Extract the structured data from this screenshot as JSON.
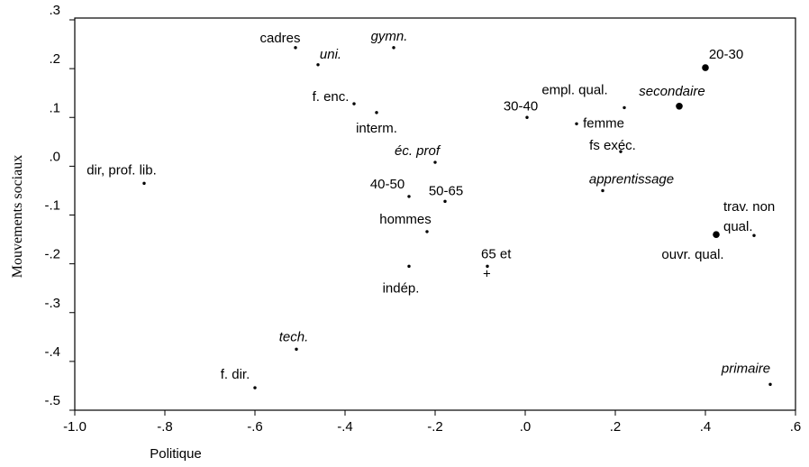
{
  "chart_data": {
    "type": "scatter",
    "xlabel": "Politique",
    "ylabel": "Mouvements sociaux",
    "xlim": [
      -1.0,
      0.6
    ],
    "ylim": [
      -0.5,
      0.3
    ],
    "xticks": [
      {
        "value": -1.0,
        "label": "-1.0"
      },
      {
        "value": -0.8,
        "label": "-.8"
      },
      {
        "value": -0.6,
        "label": "-.6"
      },
      {
        "value": -0.4,
        "label": "-.4"
      },
      {
        "value": -0.2,
        "label": "-.2"
      },
      {
        "value": 0.0,
        "label": ".0"
      },
      {
        "value": 0.2,
        "label": ".2"
      },
      {
        "value": 0.4,
        "label": ".4"
      },
      {
        "value": 0.6,
        "label": ".6"
      }
    ],
    "yticks": [
      {
        "value": 0.3,
        "label": ".3"
      },
      {
        "value": 0.2,
        "label": ".2"
      },
      {
        "value": 0.1,
        "label": ".1"
      },
      {
        "value": 0.0,
        "label": ".0"
      },
      {
        "value": -0.1,
        "label": "-.1"
      },
      {
        "value": -0.2,
        "label": "-.2"
      },
      {
        "value": -0.3,
        "label": "-.3"
      },
      {
        "value": -0.4,
        "label": "-.4"
      },
      {
        "value": -0.5,
        "label": "-.5"
      }
    ],
    "color": "#000000",
    "labels": [
      "dir, prof. lib.",
      "cadres",
      "uni.",
      "gymn.",
      "f. enc.",
      "interm.",
      "éc. prof",
      "40-50",
      "50-65",
      "hommes",
      "indép.",
      "65 et +",
      "tech.",
      "f. dir.",
      "30-40",
      "empl. qual.",
      "femme",
      "fs exéc.",
      "apprentissage",
      "20-30",
      "secondaire",
      "ouvr. qual.",
      "trav. non qual.",
      "primaire"
    ],
    "x": [
      -0.846,
      -0.51,
      -0.46,
      -0.292,
      -0.38,
      -0.33,
      -0.2,
      -0.258,
      -0.178,
      -0.218,
      -0.258,
      -0.084,
      -0.508,
      -0.6,
      0.004,
      0.114,
      0.22,
      0.212,
      0.172,
      0.4,
      0.342,
      0.424,
      0.508,
      0.544
    ],
    "y": [
      -0.035,
      0.243,
      0.208,
      0.243,
      0.128,
      0.11,
      0.008,
      -0.062,
      -0.072,
      -0.134,
      -0.205,
      -0.205,
      -0.375,
      -0.454,
      0.1,
      0.087,
      0.12,
      0.03,
      -0.05,
      0.202,
      0.123,
      -0.14,
      -0.142,
      -0.447
    ],
    "italic": [
      false,
      false,
      true,
      true,
      false,
      false,
      true,
      false,
      false,
      false,
      false,
      false,
      true,
      false,
      false,
      false,
      false,
      false,
      true,
      false,
      true,
      false,
      false,
      true
    ],
    "marker_large": [
      false,
      false,
      false,
      false,
      false,
      false,
      false,
      false,
      false,
      false,
      false,
      false,
      false,
      false,
      false,
      false,
      false,
      false,
      false,
      true,
      true,
      true,
      false,
      false
    ]
  }
}
